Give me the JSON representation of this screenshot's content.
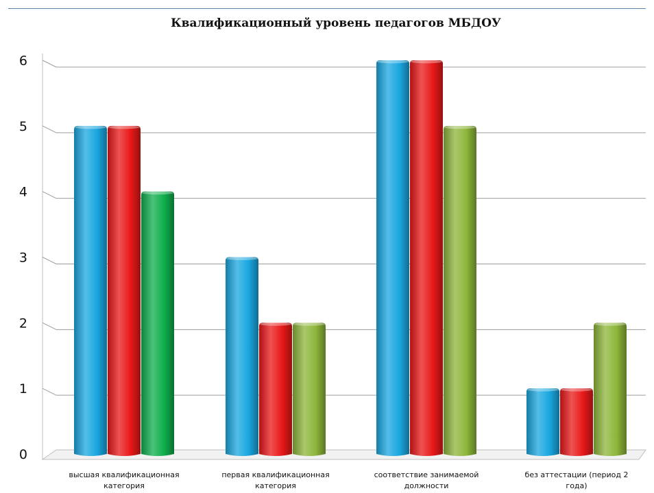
{
  "chart_data": {
    "type": "bar",
    "title": "Квалификационный уровень педагогов МБДОУ",
    "categories": [
      [
        "высшая квалификационная",
        "категория"
      ],
      [
        "первая квалификационная",
        "категория"
      ],
      [
        "соответствие занимаемой",
        "должности"
      ],
      [
        "без аттестации (период 2",
        "года)"
      ]
    ],
    "series": [
      {
        "values": [
          5,
          3,
          6,
          1
        ],
        "color": "#1aa7e0"
      },
      {
        "values": [
          5,
          2,
          6,
          1
        ],
        "color": "#e81818"
      },
      {
        "values": [
          4,
          2,
          5,
          2
        ],
        "colors": [
          "#0fae4c",
          "#8db63a",
          "#8db63a",
          "#8db63a"
        ]
      }
    ],
    "ylim": [
      0,
      6
    ],
    "yticks": [
      0,
      1,
      2,
      3,
      4,
      5,
      6
    ],
    "grid": true
  }
}
